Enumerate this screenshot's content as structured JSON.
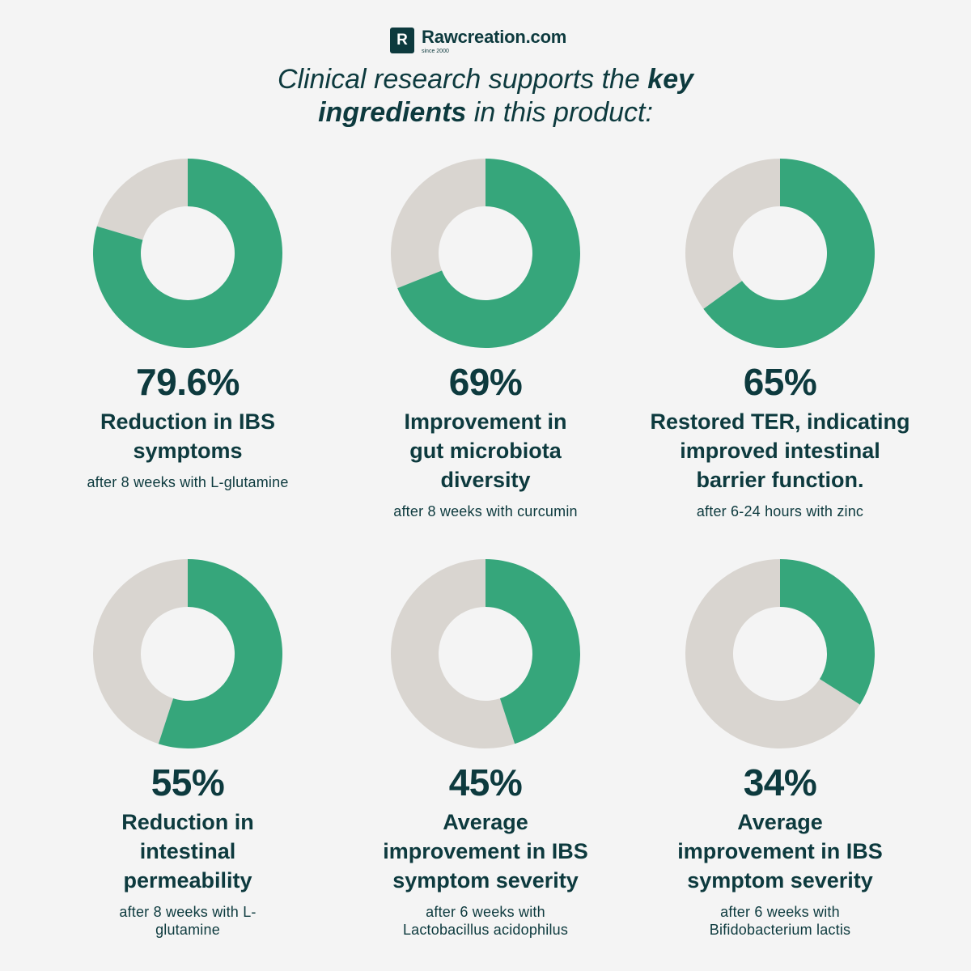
{
  "brand": {
    "logo_letter": "R",
    "name": "Rawcreation.com",
    "since": "since 2000"
  },
  "headline": {
    "line1_pre": "Clinical research supports the ",
    "line1_bold": "key",
    "line2_bold": "ingredients",
    "line2_post": " in this product:"
  },
  "colors": {
    "accent": "#36a67b",
    "remainder": "#d9d5d0",
    "text": "#0d3a3e",
    "background": "#f4f4f4"
  },
  "chart_data": [
    {
      "type": "pie",
      "value": 79.6,
      "label": "79.6%",
      "title_lines": [
        "Reduction in IBS",
        "symptoms"
      ],
      "sub_lines": [
        "after 8 weeks with L-glutamine"
      ]
    },
    {
      "type": "pie",
      "value": 69,
      "label": "69%",
      "title_lines": [
        "Improvement in",
        "gut microbiota",
        "diversity"
      ],
      "sub_lines": [
        "after 8 weeks with curcumin"
      ]
    },
    {
      "type": "pie",
      "value": 65,
      "label": "65%",
      "title_lines": [
        "Restored TER, indicating",
        "improved intestinal",
        "barrier function."
      ],
      "sub_lines": [
        "after 6-24 hours with zinc"
      ]
    },
    {
      "type": "pie",
      "value": 55,
      "label": "55%",
      "title_lines": [
        "Reduction in",
        "intestinal",
        "permeability"
      ],
      "sub_lines": [
        "after 8 weeks with L-",
        "glutamine"
      ]
    },
    {
      "type": "pie",
      "value": 45,
      "label": "45%",
      "title_lines": [
        "Average",
        "improvement in IBS",
        "symptom severity"
      ],
      "sub_lines": [
        "after 6 weeks with",
        "Lactobacillus acidophilus"
      ]
    },
    {
      "type": "pie",
      "value": 34,
      "label": "34%",
      "title_lines": [
        "Average",
        "improvement in IBS",
        "symptom severity"
      ],
      "sub_lines": [
        "after 6 weeks with",
        "Bifidobacterium lactis"
      ]
    }
  ]
}
